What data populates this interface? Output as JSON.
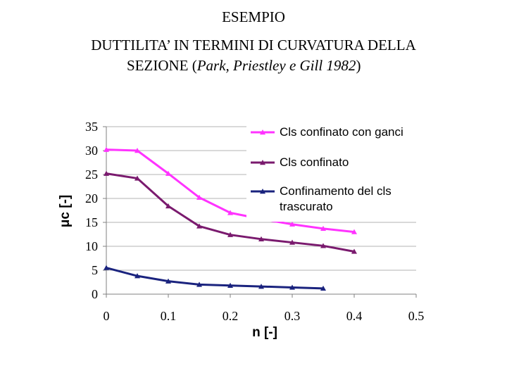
{
  "slide": {
    "title_line1": "ESEMPIO",
    "title_line2": "DUTTILITA’ IN TERMINI DI CURVATURA DELLA",
    "title_line3_prefix": "SEZIONE (",
    "title_line3_italic": "Park, Priestley e Gill 1982",
    "title_line3_suffix": ")"
  },
  "chart_data": {
    "type": "line",
    "title": "",
    "xlabel": "n  [-]",
    "ylabel": "μc  [-]",
    "xlim": [
      0,
      0.5
    ],
    "ylim": [
      0,
      35
    ],
    "x_ticks": [
      "0",
      "0.1",
      "0.2",
      "0.3",
      "0.4",
      "0.5"
    ],
    "y_ticks": [
      "0",
      "5",
      "10",
      "15",
      "20",
      "25",
      "30",
      "35"
    ],
    "grid": "horizontal",
    "legend_position": "top-right",
    "series": [
      {
        "name": "Cls confinato con ganci",
        "color": "#ff33ff",
        "marker": "triangle",
        "x": [
          0,
          0.05,
          0.1,
          0.15,
          0.2,
          0.25,
          0.3,
          0.35,
          0.4
        ],
        "y": [
          30.2,
          30.0,
          25.2,
          20.2,
          17.0,
          15.7,
          14.6,
          13.7,
          13.0
        ]
      },
      {
        "name": "Cls confinato",
        "color": "#7a1a6e",
        "marker": "triangle",
        "x": [
          0,
          0.05,
          0.1,
          0.15,
          0.2,
          0.25,
          0.3,
          0.35,
          0.4
        ],
        "y": [
          25.2,
          24.2,
          18.4,
          14.2,
          12.4,
          11.5,
          10.8,
          10.1,
          8.9
        ]
      },
      {
        "name": "Confinamento del cls\ntrascurato",
        "legend_lines": [
          "Confinamento del cls",
          "trascurato"
        ],
        "color": "#1a237e",
        "marker": "triangle",
        "x": [
          0,
          0.05,
          0.1,
          0.15,
          0.2,
          0.25,
          0.3,
          0.35
        ],
        "y": [
          5.5,
          3.8,
          2.7,
          2.0,
          1.8,
          1.6,
          1.4,
          1.2
        ]
      }
    ]
  }
}
